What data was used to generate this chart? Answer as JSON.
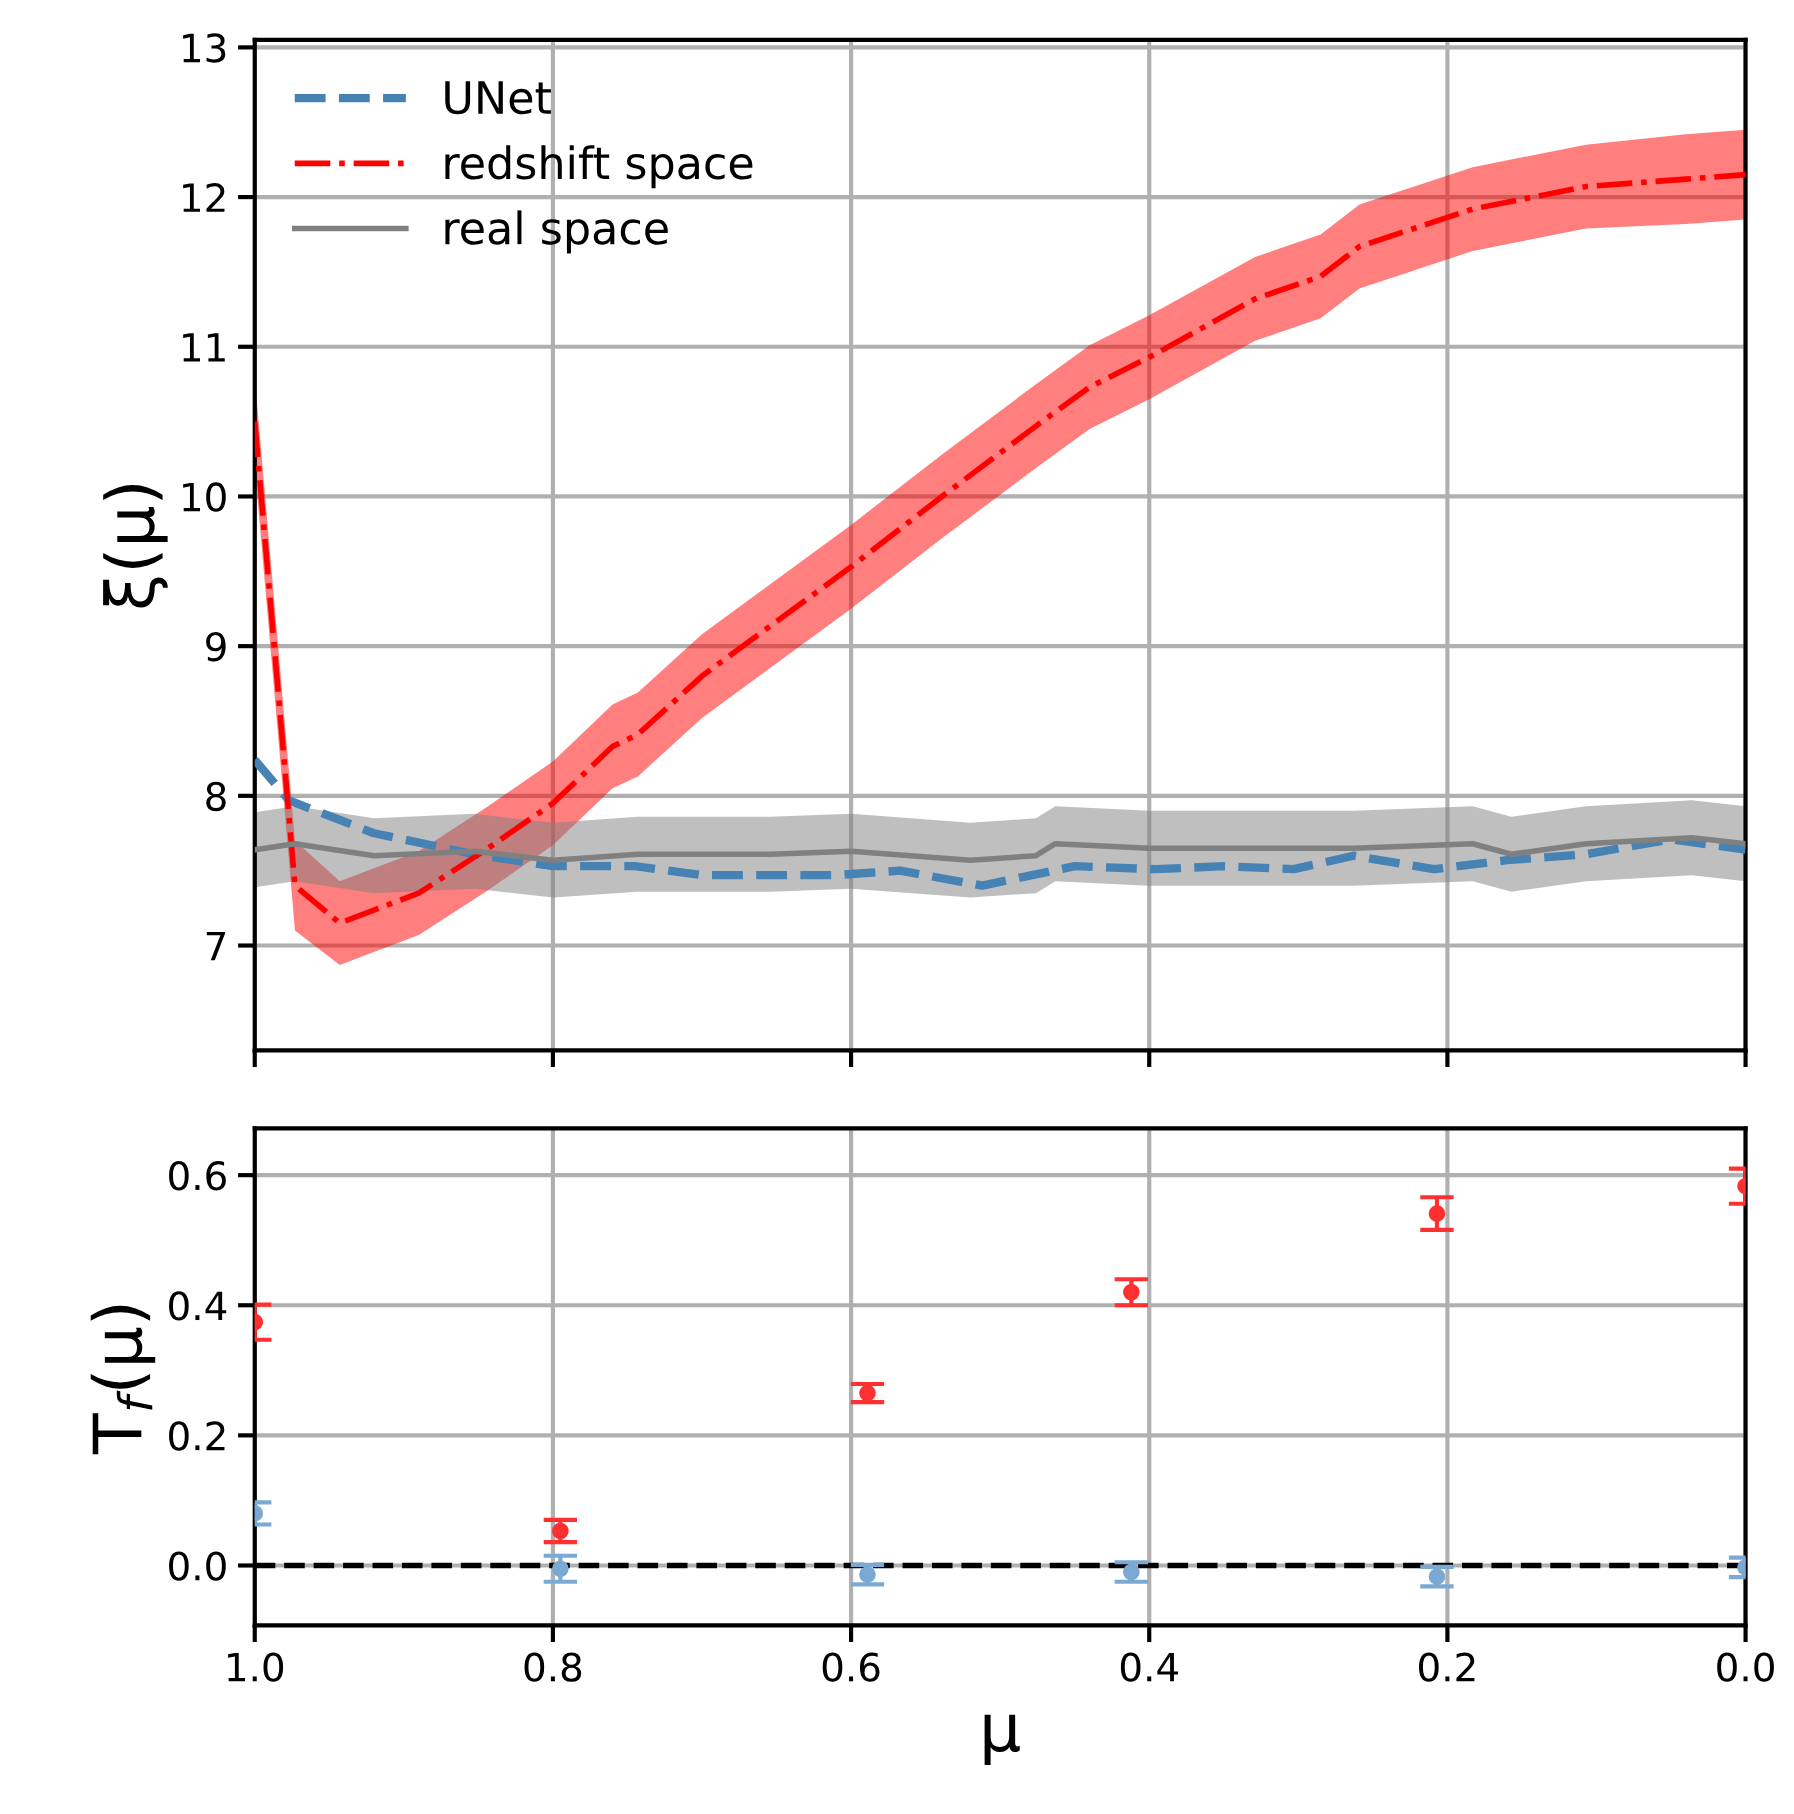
{
  "chart_data": [
    {
      "type": "line",
      "ylabel": "ξ(μ)",
      "xlim": [
        1.0,
        0.0
      ],
      "ylim": [
        6.3,
        13.05
      ],
      "xticks": [
        {
          "value": 1.0,
          "label": null
        },
        {
          "value": 0.8,
          "label": null
        },
        {
          "value": 0.6,
          "label": null
        },
        {
          "value": 0.4,
          "label": null
        },
        {
          "value": 0.2,
          "label": null
        },
        {
          "value": 0.0,
          "label": null
        }
      ],
      "yticks": [
        7,
        8,
        9,
        10,
        11,
        12,
        13
      ],
      "tick_labels": "y",
      "grid": true,
      "legend": "top left",
      "marker": "none",
      "series": [
        {
          "name": "UNet",
          "color": "#4682b4",
          "line_style": "dashed",
          "x": [
            1.0,
            0.977,
            0.92,
            0.853,
            0.8,
            0.745,
            0.7,
            0.611,
            0.567,
            0.512,
            0.45,
            0.396,
            0.35,
            0.303,
            0.263,
            0.209,
            0.16,
            0.107,
            0.05,
            0.0
          ],
          "values": [
            8.24,
            7.97,
            7.75,
            7.61,
            7.53,
            7.53,
            7.47,
            7.47,
            7.5,
            7.4,
            7.53,
            7.51,
            7.53,
            7.51,
            7.6,
            7.51,
            7.57,
            7.61,
            7.71,
            7.64
          ]
        },
        {
          "name": "redshift space",
          "color": "#ff0000",
          "line_style": "dashdot",
          "x": [
            1.0,
            0.973,
            0.943,
            0.89,
            0.845,
            0.8,
            0.76,
            0.743,
            0.7,
            0.6,
            0.539,
            0.476,
            0.44,
            0.4,
            0.329,
            0.285,
            0.259,
            0.183,
            0.107,
            0.04,
            0.0
          ],
          "values": [
            10.5,
            7.4,
            7.15,
            7.35,
            7.64,
            7.95,
            8.33,
            8.41,
            8.8,
            9.53,
            10.0,
            10.47,
            10.73,
            10.93,
            11.32,
            11.47,
            11.67,
            11.92,
            12.07,
            12.12,
            12.15
          ],
          "lower": [
            10.2,
            7.1,
            6.87,
            7.07,
            7.36,
            7.67,
            8.05,
            8.13,
            8.52,
            9.25,
            9.72,
            10.19,
            10.45,
            10.65,
            11.04,
            11.19,
            11.39,
            11.64,
            11.79,
            11.82,
            11.85
          ],
          "upper": [
            10.8,
            7.7,
            7.43,
            7.63,
            7.92,
            8.23,
            8.61,
            8.69,
            9.08,
            9.81,
            10.28,
            10.75,
            11.01,
            11.21,
            11.6,
            11.75,
            11.95,
            12.2,
            12.35,
            12.42,
            12.45
          ]
        },
        {
          "name": "real space",
          "color": "#808080",
          "line_style": "solid",
          "x": [
            1.0,
            0.973,
            0.92,
            0.853,
            0.8,
            0.743,
            0.654,
            0.6,
            0.52,
            0.476,
            0.463,
            0.4,
            0.33,
            0.263,
            0.183,
            0.157,
            0.107,
            0.036,
            0.0
          ],
          "values": [
            7.64,
            7.68,
            7.6,
            7.63,
            7.57,
            7.61,
            7.61,
            7.63,
            7.57,
            7.6,
            7.68,
            7.65,
            7.65,
            7.65,
            7.68,
            7.61,
            7.68,
            7.72,
            7.68
          ],
          "lower": [
            7.39,
            7.43,
            7.35,
            7.38,
            7.32,
            7.36,
            7.36,
            7.38,
            7.32,
            7.35,
            7.43,
            7.4,
            7.4,
            7.4,
            7.43,
            7.36,
            7.43,
            7.47,
            7.43
          ],
          "upper": [
            7.89,
            7.93,
            7.85,
            7.88,
            7.82,
            7.86,
            7.86,
            7.88,
            7.82,
            7.85,
            7.93,
            7.9,
            7.9,
            7.9,
            7.93,
            7.86,
            7.93,
            7.97,
            7.93
          ]
        }
      ]
    },
    {
      "type": "scatter",
      "xlabel": "μ",
      "ylabel": "T$_{f}$(μ)",
      "xlim": [
        1.0,
        0.0
      ],
      "ylim": [
        -0.092,
        0.672
      ],
      "xticks": [
        {
          "value": 1.0,
          "label": "1.0"
        },
        {
          "value": 0.8,
          "label": "0.8"
        },
        {
          "value": 0.6,
          "label": "0.6"
        },
        {
          "value": 0.4,
          "label": "0.4"
        },
        {
          "value": 0.2,
          "label": "0.2"
        },
        {
          "value": 0.0,
          "label": "0.0"
        }
      ],
      "yticks": [
        {
          "value": 0.0,
          "label": "0.0"
        },
        {
          "value": 0.2,
          "label": "0.2"
        },
        {
          "value": 0.4,
          "label": "0.4"
        },
        {
          "value": 0.6,
          "label": "0.6"
        }
      ],
      "grid": true,
      "marker": "circle",
      "ref_lines": [
        {
          "axis": "y",
          "value": 0,
          "color": "#000000",
          "line_style": "dashed"
        }
      ],
      "series": [
        {
          "color": "#ff3030",
          "x": [
            1.0,
            0.795,
            0.589,
            0.412,
            0.207,
            0.0
          ],
          "values": [
            0.374,
            0.053,
            0.265,
            0.42,
            0.541,
            0.583
          ],
          "errors": [
            0.027,
            0.017,
            0.014,
            0.02,
            0.025,
            0.027
          ]
        },
        {
          "color": "#7aaad3",
          "x": [
            1.0,
            0.795,
            0.589,
            0.412,
            0.207,
            0.0
          ],
          "values": [
            0.08,
            -0.005,
            -0.014,
            -0.01,
            -0.017,
            -0.003
          ],
          "errors": [
            0.017,
            0.02,
            0.015,
            0.015,
            0.015,
            0.015
          ]
        }
      ]
    }
  ]
}
